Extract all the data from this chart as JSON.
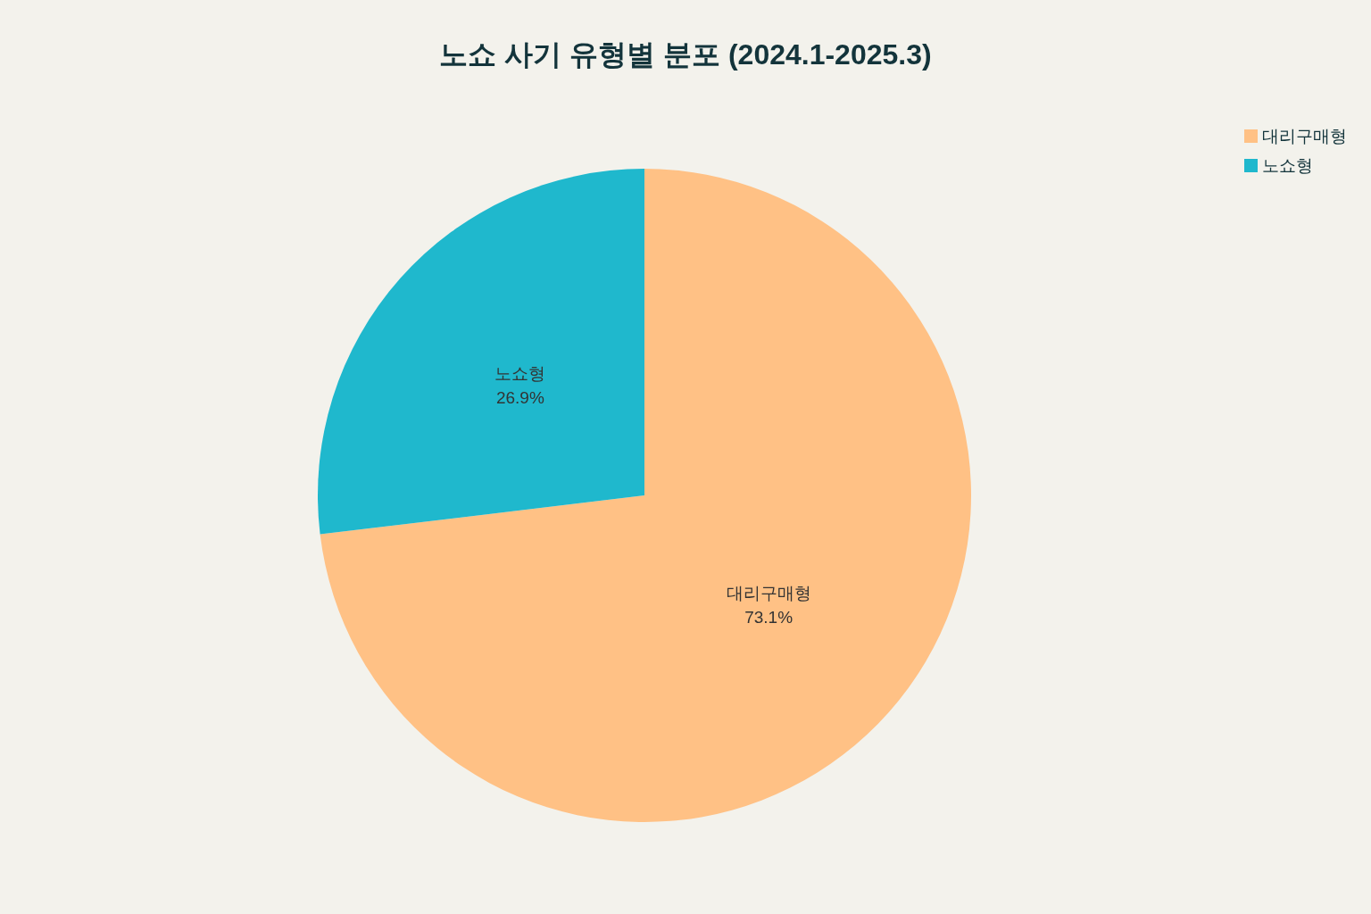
{
  "chart_data": {
    "type": "pie",
    "title": "노쇼 사기 유형별 분포 (2024.1-2025.3)",
    "categories": [
      "대리구매형",
      "노쇼형"
    ],
    "values": [
      73.1,
      26.9
    ],
    "colors": [
      "#ffc185",
      "#1fb8cd"
    ],
    "value_labels": [
      "73.1%",
      "26.9%"
    ],
    "legend": "top right"
  }
}
